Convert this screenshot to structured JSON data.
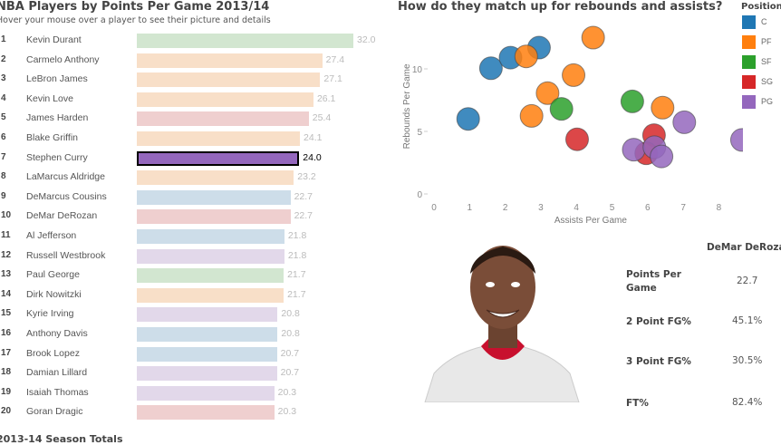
{
  "left": {
    "title": "NBA Players by Points Per Game 2013/14",
    "subtitle": "Hover your mouse over a player to see their picture and details",
    "footer": "2013-14 Season Totals",
    "selected_player": "Stephen Curry",
    "players": [
      {
        "rank": "1",
        "name": "Kevin Durant",
        "ppg": 32.0,
        "label": "32.0",
        "position": "SF"
      },
      {
        "rank": "2",
        "name": "Carmelo Anthony",
        "ppg": 27.4,
        "label": "27.4",
        "position": "PF"
      },
      {
        "rank": "3",
        "name": "LeBron James",
        "ppg": 27.1,
        "label": "27.1",
        "position": "PF"
      },
      {
        "rank": "4",
        "name": "Kevin Love",
        "ppg": 26.1,
        "label": "26.1",
        "position": "PF"
      },
      {
        "rank": "5",
        "name": "James Harden",
        "ppg": 25.4,
        "label": "25.4",
        "position": "SG"
      },
      {
        "rank": "6",
        "name": "Blake Griffin",
        "ppg": 24.1,
        "label": "24.1",
        "position": "PF"
      },
      {
        "rank": "7",
        "name": "Stephen Curry",
        "ppg": 24.0,
        "label": "24.0",
        "position": "PG"
      },
      {
        "rank": "8",
        "name": "LaMarcus Aldridge",
        "ppg": 23.2,
        "label": "23.2",
        "position": "PF"
      },
      {
        "rank": "9",
        "name": "DeMarcus Cousins",
        "ppg": 22.7,
        "label": "22.7",
        "position": "C"
      },
      {
        "rank": "10",
        "name": "DeMar DeRozan",
        "ppg": 22.7,
        "label": "22.7",
        "position": "SG"
      },
      {
        "rank": "11",
        "name": "Al Jefferson",
        "ppg": 21.8,
        "label": "21.8",
        "position": "C"
      },
      {
        "rank": "12",
        "name": "Russell Westbrook",
        "ppg": 21.8,
        "label": "21.8",
        "position": "PG"
      },
      {
        "rank": "13",
        "name": "Paul George",
        "ppg": 21.7,
        "label": "21.7",
        "position": "SF"
      },
      {
        "rank": "14",
        "name": "Dirk Nowitzki",
        "ppg": 21.7,
        "label": "21.7",
        "position": "PF"
      },
      {
        "rank": "15",
        "name": "Kyrie Irving",
        "ppg": 20.8,
        "label": "20.8",
        "position": "PG"
      },
      {
        "rank": "16",
        "name": "Anthony Davis",
        "ppg": 20.8,
        "label": "20.8",
        "position": "C"
      },
      {
        "rank": "17",
        "name": "Brook Lopez",
        "ppg": 20.7,
        "label": "20.7",
        "position": "C"
      },
      {
        "rank": "18",
        "name": "Damian Lillard",
        "ppg": 20.7,
        "label": "20.7",
        "position": "PG"
      },
      {
        "rank": "19",
        "name": "Isaiah Thomas",
        "ppg": 20.3,
        "label": "20.3",
        "position": "PG"
      },
      {
        "rank": "20",
        "name": "Goran Dragic",
        "ppg": 20.3,
        "label": "20.3",
        "position": "SG"
      }
    ]
  },
  "colors": {
    "C": "#1f77b4",
    "PF": "#ff7f0e",
    "SF": "#2ca02c",
    "SG": "#d62728",
    "PG": "#9467bd"
  },
  "pale_colors": {
    "C": "#cddde9",
    "PF": "#f8dfc8",
    "SF": "#d2e6d0",
    "SG": "#efcfcf",
    "PG": "#e2d8ea"
  },
  "chart_data": {
    "type": "scatter",
    "title": "How do they match up for rebounds and assists?",
    "xlabel": "Assists Per Game",
    "ylabel": "Rebounds Per Game",
    "xlim": [
      0,
      8.8
    ],
    "ylim": [
      0,
      14
    ],
    "xticks": [
      "0",
      "1",
      "2",
      "3",
      "4",
      "5",
      "6",
      "7",
      "8"
    ],
    "yticks": [
      "0",
      "5",
      "10"
    ],
    "grid": false,
    "legend": {
      "title": "Position",
      "placement": "right",
      "entries": [
        "C",
        "PF",
        "SF",
        "SG",
        "PG"
      ]
    },
    "series": [
      {
        "name": "C",
        "points": [
          [
            0.96,
            6.0
          ],
          [
            1.6,
            10.05
          ],
          [
            2.15,
            10.9
          ],
          [
            2.95,
            11.7
          ]
        ]
      },
      {
        "name": "PF",
        "points": [
          [
            2.59,
            11.0
          ],
          [
            4.47,
            12.5
          ],
          [
            3.92,
            9.5
          ],
          [
            3.19,
            8.06
          ],
          [
            2.74,
            6.24
          ],
          [
            6.42,
            6.9
          ]
        ]
      },
      {
        "name": "SF",
        "points": [
          [
            3.58,
            6.8
          ],
          [
            5.57,
            7.4
          ]
        ]
      },
      {
        "name": "SG",
        "points": [
          [
            4.02,
            4.37
          ],
          [
            6.18,
            4.7
          ],
          [
            5.96,
            3.25
          ]
        ]
      },
      {
        "name": "PG",
        "points": [
          [
            7.03,
            5.73
          ],
          [
            8.65,
            4.32
          ],
          [
            5.61,
            3.54
          ],
          [
            6.19,
            3.74
          ],
          [
            6.39,
            3.0
          ]
        ]
      }
    ]
  },
  "details": {
    "player_name": "DeMar DeRoza",
    "stats": [
      {
        "label": "Points Per Game",
        "value": "22.7"
      },
      {
        "label": "2 Point FG%",
        "value": "45.1%"
      },
      {
        "label": "3 Point FG%",
        "value": "30.5%"
      },
      {
        "label": "FT%",
        "value": "82.4%"
      }
    ]
  }
}
